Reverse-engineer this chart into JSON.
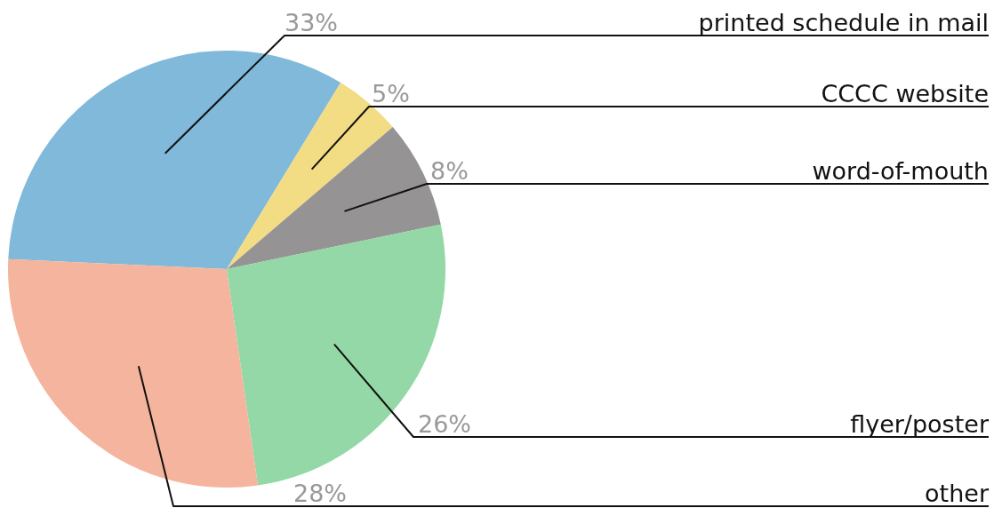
{
  "chart_data": {
    "type": "pie",
    "categories": [
      "printed schedule in mail",
      "CCCC website",
      "word-of-mouth",
      "flyer/poster",
      "other"
    ],
    "values": [
      33,
      5,
      8,
      26,
      28
    ],
    "value_labels": [
      "33%",
      "5%",
      "8%",
      "26%",
      "28%"
    ],
    "colors": [
      "#80b9da",
      "#f2dc84",
      "#959393",
      "#93d8a6",
      "#f5b49d"
    ],
    "legend": false
  }
}
